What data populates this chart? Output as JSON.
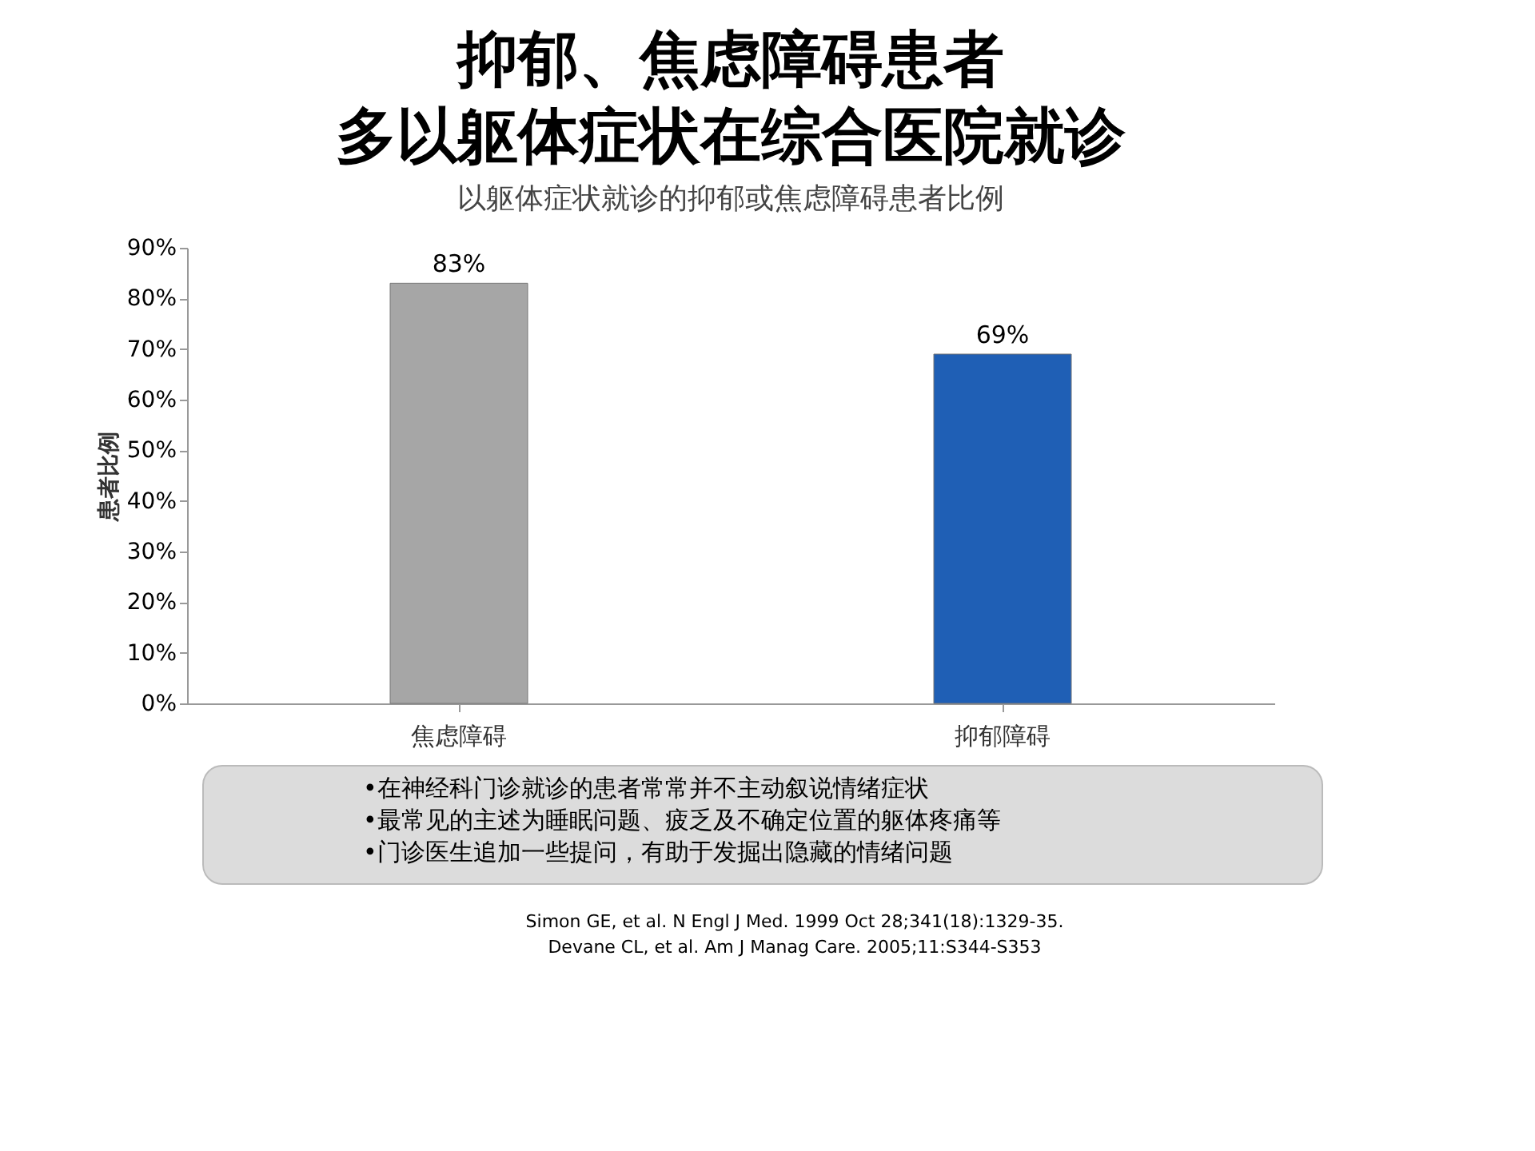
{
  "chart_data": {
    "type": "bar",
    "title": [
      "抑郁、焦虑障碍患者",
      "多以躯体症状在综合医院就诊"
    ],
    "subtitle": "以躯体症状就诊的抑郁或焦虑障碍患者比例",
    "ylabel": "患者比例",
    "categories": [
      "焦虑障碍",
      "抑郁障碍"
    ],
    "values": [
      83,
      69
    ],
    "colors": [
      "#a6a6a6",
      "#1f5fb5"
    ],
    "value_labels": [
      "83%",
      "69%"
    ],
    "ylim": [
      0,
      90
    ],
    "yticks": [
      {
        "value": 0,
        "label": "0%"
      },
      {
        "value": 10,
        "label": "10%"
      },
      {
        "value": 20,
        "label": "20%"
      },
      {
        "value": 30,
        "label": "30%"
      },
      {
        "value": 40,
        "label": "40%"
      },
      {
        "value": 50,
        "label": "50%"
      },
      {
        "value": 60,
        "label": "60%"
      },
      {
        "value": 70,
        "label": "70%"
      },
      {
        "value": 80,
        "label": "80%"
      },
      {
        "value": 90,
        "label": "90%"
      }
    ],
    "grid": false,
    "annotations": [
      "•在神经科门诊就诊的患者常常并不主动叙说情绪症状",
      "•最常见的主述为睡眠问题、疲乏及不确定位置的躯体疼痛等",
      "•门诊医生追加一些提问，有助于发掘出隐藏的情绪问题",
      "Simon GE, et al. N Engl J Med. 1999 Oct 28;341(18):1329-35.",
      "Devane CL, et al. Am J Manag Care. 2005;11:S344-S353"
    ]
  }
}
